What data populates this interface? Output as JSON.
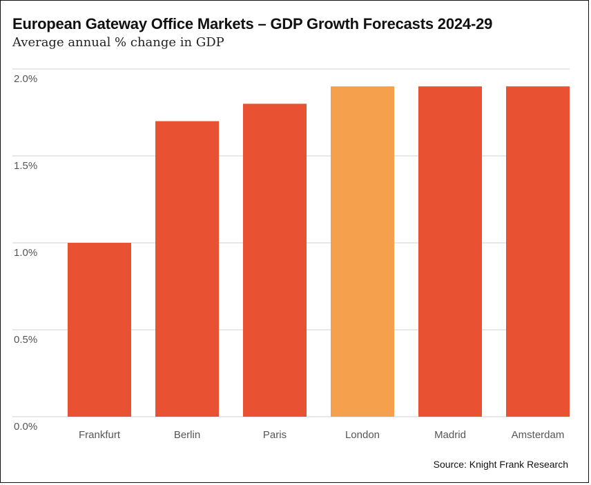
{
  "chart_data": {
    "type": "bar",
    "title": "European Gateway Office Markets – GDP Growth Forecasts 2024-29",
    "subtitle": "Average annual % change in GDP",
    "xlabel": "",
    "ylabel": "",
    "categories": [
      "Frankfurt",
      "Berlin",
      "Paris",
      "London",
      "Madrid",
      "Amsterdam"
    ],
    "values": [
      1.0,
      1.7,
      1.8,
      1.9,
      1.9,
      1.9
    ],
    "highlight": "London",
    "colors": {
      "default": "#E85232",
      "highlight": "#F5A04D",
      "grid": "#d9d9d9"
    },
    "ylim": [
      0,
      2.0
    ],
    "yticks": [
      0,
      0.5,
      1.0,
      1.5,
      2.0
    ],
    "ytick_labels": [
      "0.0%",
      "0.5%",
      "1.0%",
      "1.5%",
      "2.0%"
    ],
    "grid": true,
    "legend": "none",
    "source": "Source: Knight Frank Research"
  }
}
